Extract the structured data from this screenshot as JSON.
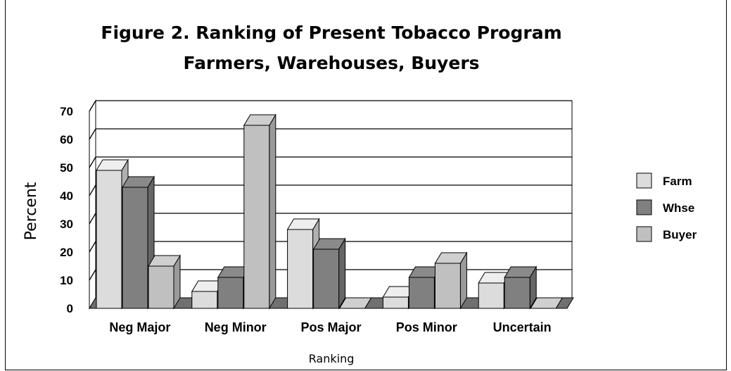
{
  "chart_data": {
    "type": "bar",
    "title": "Figure 2.  Ranking of Present Tobacco Program",
    "subtitle": "Farmers, Warehouses, Buyers",
    "xlabel": "Ranking",
    "ylabel": "Percent",
    "ylim": [
      0,
      70
    ],
    "yticks": [
      "70",
      "60",
      "50",
      "40",
      "30",
      "20",
      "10",
      "0"
    ],
    "categories": [
      "Neg Major",
      "Neg Minor",
      "Pos Major",
      "Pos Minor",
      "Uncertain"
    ],
    "series": [
      {
        "name": "Farm",
        "values": [
          49,
          6,
          28,
          4,
          9
        ],
        "color": "#dcdcdc"
      },
      {
        "name": "Whse",
        "values": [
          43,
          11,
          21,
          11,
          11
        ],
        "color": "#808080"
      },
      {
        "name": "Buyer",
        "values": [
          15,
          65,
          0,
          16,
          0
        ],
        "color": "#c0c0c0"
      }
    ],
    "grid": true,
    "legend": "right",
    "style": "3d"
  }
}
